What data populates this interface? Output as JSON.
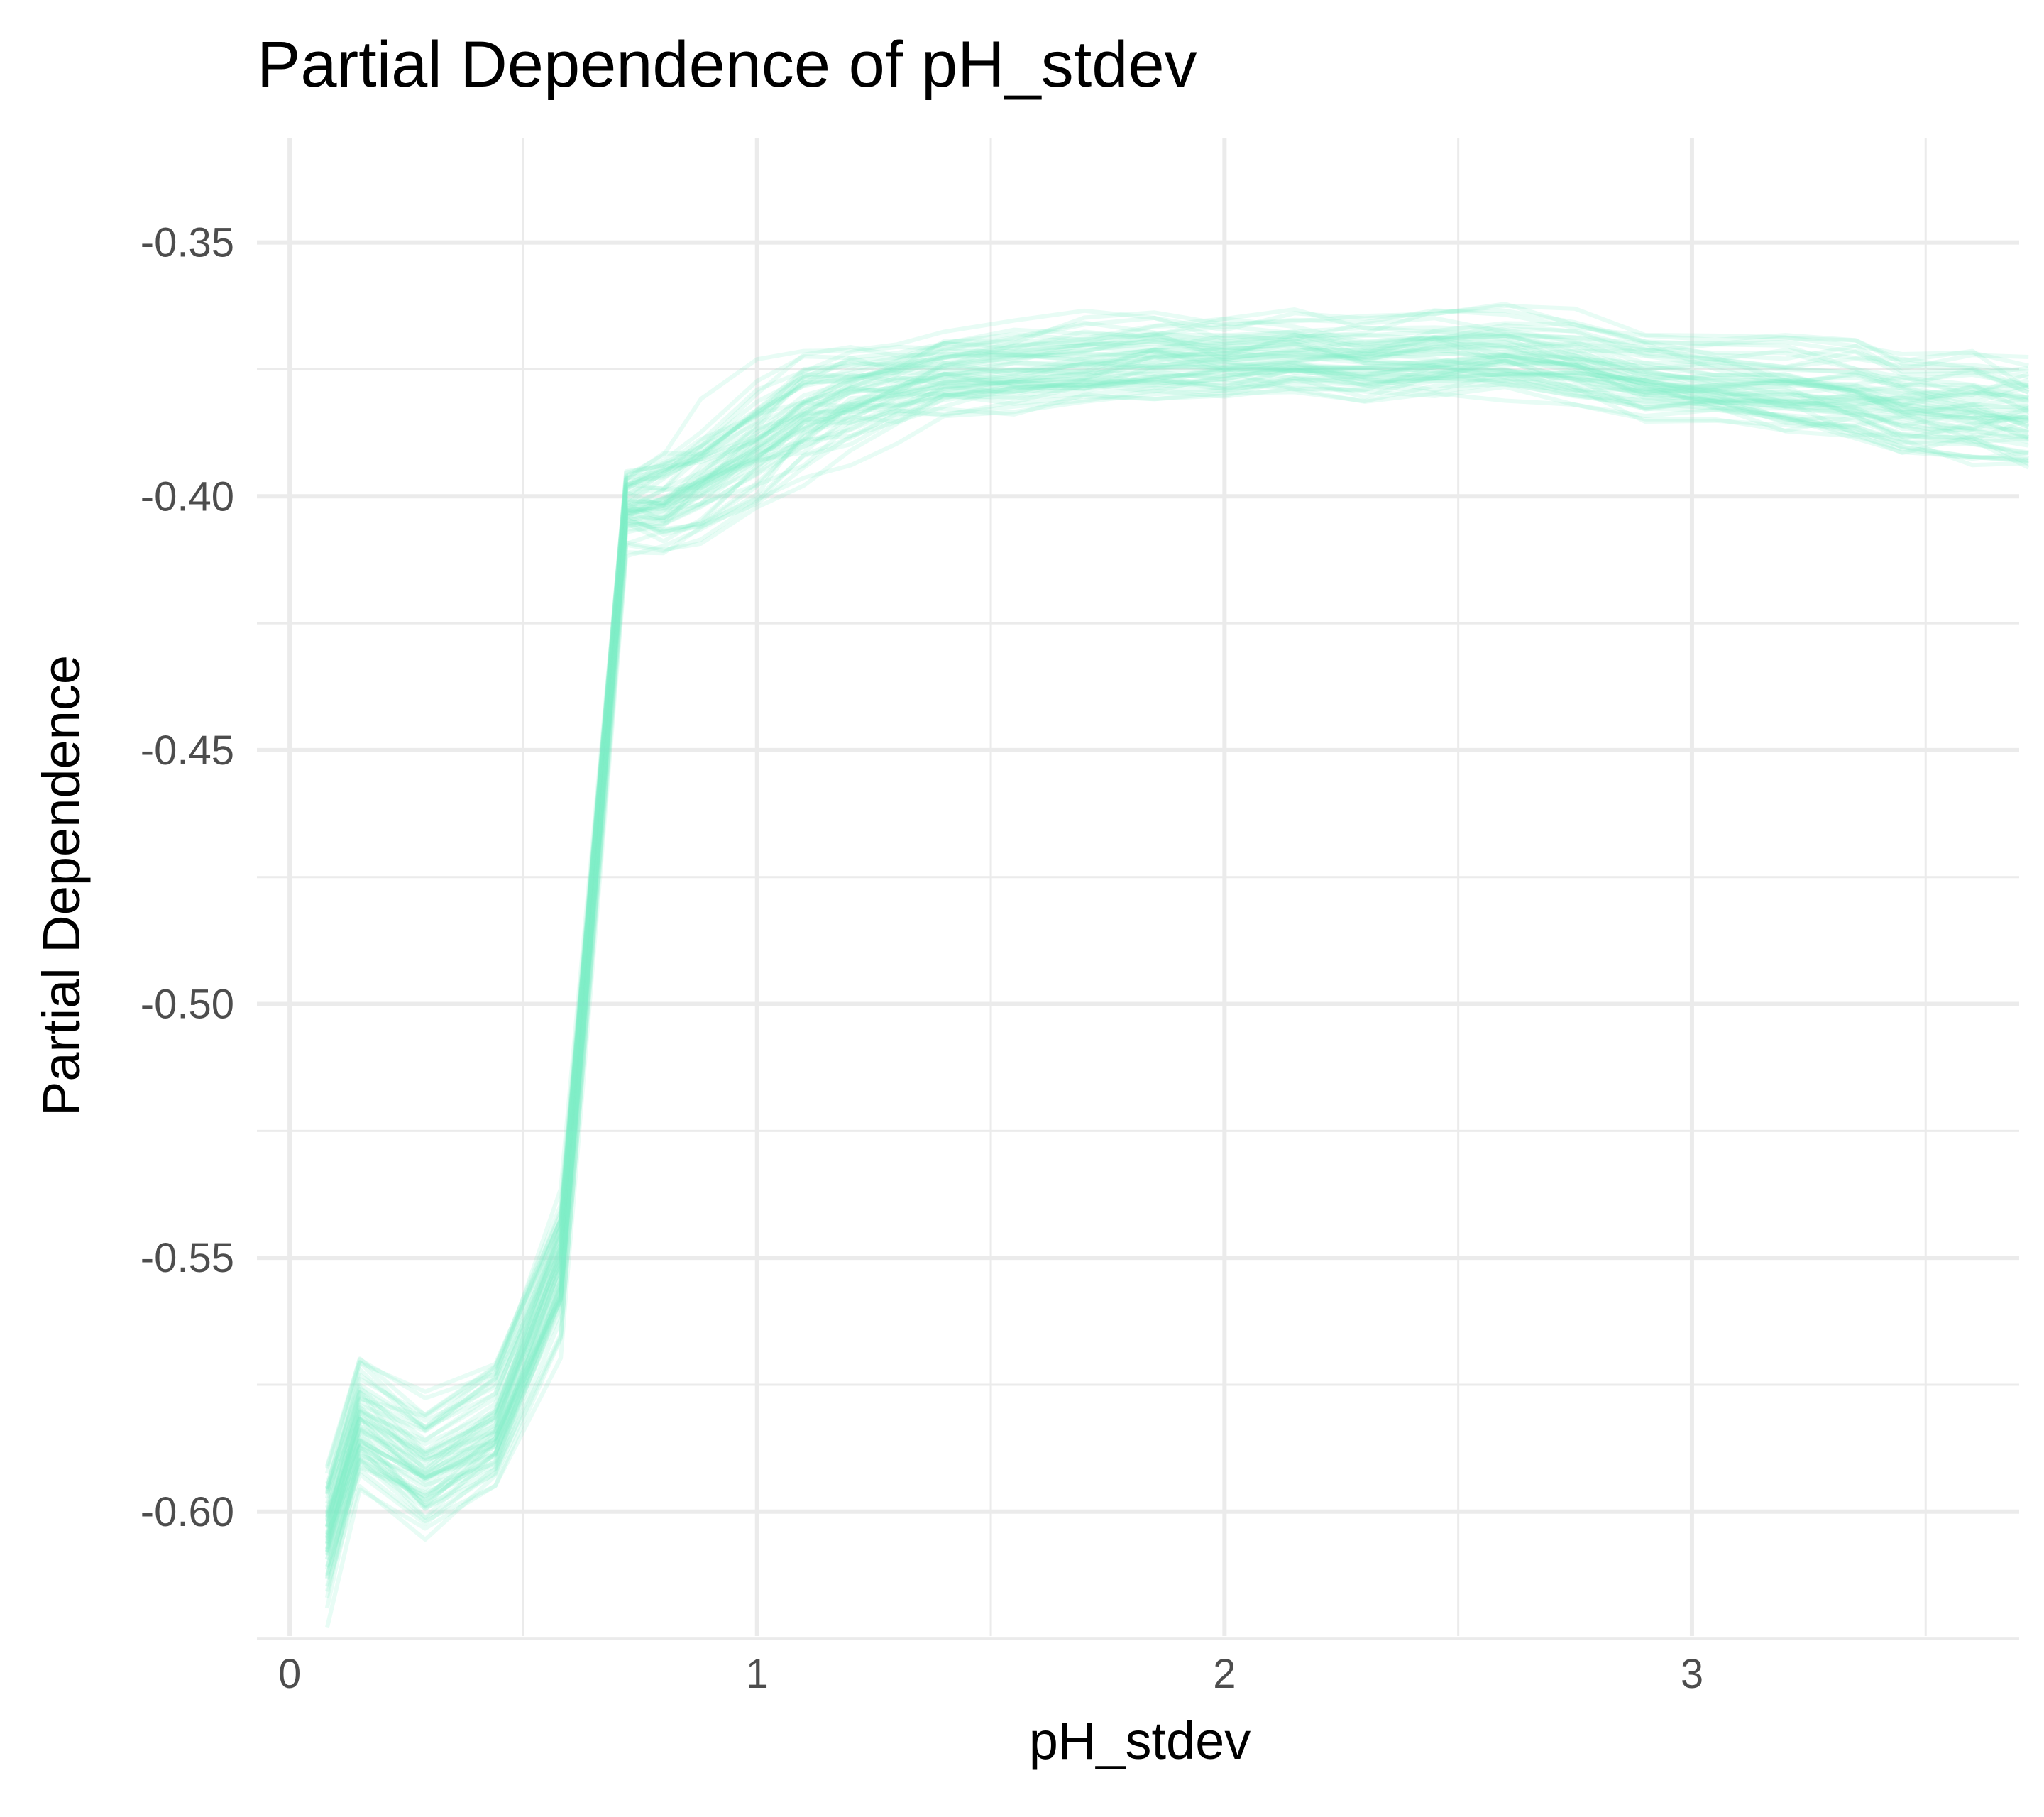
{
  "chart_data": {
    "type": "line",
    "title": "Partial Dependence of pH_stdev",
    "xlabel": "pH_stdev",
    "ylabel": "Partial Dependence",
    "xlim": [
      -0.07,
      3.7
    ],
    "ylim": [
      -0.6245,
      -0.3295
    ],
    "x_ticks": [
      0,
      1,
      2,
      3
    ],
    "x_tick_labels": [
      "0",
      "1",
      "2",
      "3"
    ],
    "x_minor_ticks": [
      0.5,
      1.5,
      2.5,
      3.5
    ],
    "y_ticks": [
      -0.6,
      -0.55,
      -0.5,
      -0.45,
      -0.4,
      -0.35
    ],
    "y_tick_labels": [
      "-0.60",
      "-0.55",
      "-0.50",
      "-0.45",
      "-0.40",
      "-0.35"
    ],
    "y_minor_ticks": [
      -0.625,
      -0.575,
      -0.525,
      -0.475,
      -0.425,
      -0.375
    ],
    "grid": true,
    "legend": "none",
    "line_color": "#7deec6",
    "line_opacity": 0.18,
    "n_ice_lines": 60,
    "x": [
      0.08,
      0.15,
      0.29,
      0.44,
      0.58,
      0.72,
      0.8,
      0.88,
      1.0,
      1.1,
      1.2,
      1.3,
      1.4,
      1.55,
      1.7,
      1.85,
      2.0,
      2.15,
      2.3,
      2.45,
      2.6,
      2.75,
      2.9,
      3.05,
      3.2,
      3.35,
      3.45,
      3.6,
      3.72
    ],
    "center_curve": [
      -0.605,
      -0.583,
      -0.592,
      -0.584,
      -0.552,
      -0.402,
      -0.401,
      -0.396,
      -0.389,
      -0.383,
      -0.38,
      -0.378,
      -0.376,
      -0.375,
      -0.374,
      -0.373,
      -0.373,
      -0.372,
      -0.373,
      -0.372,
      -0.372,
      -0.374,
      -0.377,
      -0.378,
      -0.379,
      -0.38,
      -0.382,
      -0.383,
      -0.384
    ],
    "spread_curve": [
      0.012,
      0.011,
      0.01,
      0.01,
      0.012,
      0.006,
      0.008,
      0.009,
      0.009,
      0.008,
      0.007,
      0.006,
      0.006,
      0.006,
      0.006,
      0.006,
      0.006,
      0.006,
      0.006,
      0.006,
      0.006,
      0.006,
      0.006,
      0.006,
      0.007,
      0.007,
      0.007,
      0.008,
      0.008
    ]
  }
}
